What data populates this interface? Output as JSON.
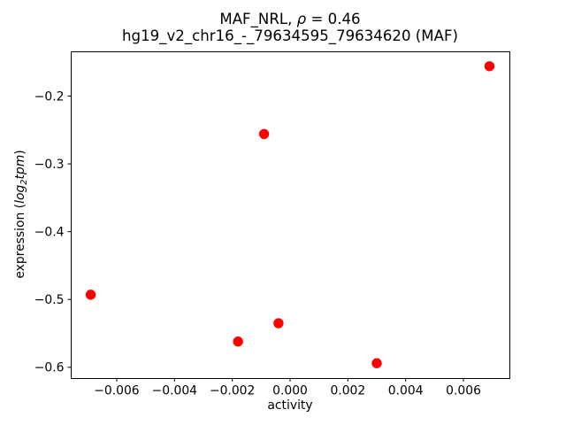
{
  "title": {
    "part1": "MAF_NRL, ",
    "rho": "ρ",
    "part2": " = 0.46",
    "line2": "hg19_v2_chr16_-_79634595_79634620 (MAF)"
  },
  "axis_labels": {
    "x": "activity",
    "y_prefix": "expression (",
    "y_log": "log",
    "y_sub": "2",
    "y_tpm": "tpm",
    "y_suffix": ")"
  },
  "chart_data": {
    "type": "scatter",
    "title": "MAF_NRL, ρ = 0.46",
    "subtitle": "hg19_v2_chr16_-_79634595_79634620 (MAF)",
    "xlabel": "activity",
    "ylabel": "expression (log2 tpm)",
    "grid": false,
    "legend": null,
    "marker": {
      "color": "#ff0000",
      "radius_px": 5.7
    },
    "axis_color": "#000000",
    "xlim": [
      -0.00759,
      0.00759
    ],
    "ylim": [
      -0.6159,
      -0.1341
    ],
    "xticks": [
      -0.006,
      -0.004,
      -0.002,
      0.0,
      0.002,
      0.004,
      0.006
    ],
    "xtick_labels": [
      "−0.006",
      "−0.004",
      "−0.002",
      "0.000",
      "0.002",
      "0.004",
      "0.006"
    ],
    "yticks": [
      -0.2,
      -0.3,
      -0.4,
      -0.5,
      -0.6
    ],
    "ytick_labels": [
      "−0.2",
      "−0.3",
      "−0.4",
      "−0.5",
      "−0.6"
    ],
    "points": [
      {
        "x": 0.0069,
        "y": -0.156
      },
      {
        "x": -0.0009,
        "y": -0.256
      },
      {
        "x": -0.0069,
        "y": -0.493
      },
      {
        "x": -0.0004,
        "y": -0.535
      },
      {
        "x": -0.0018,
        "y": -0.562
      },
      {
        "x": 0.003,
        "y": -0.594
      }
    ]
  }
}
